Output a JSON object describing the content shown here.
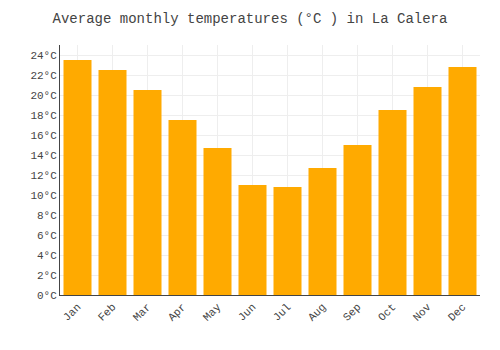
{
  "chart_data": {
    "type": "bar",
    "title": "Average monthly temperatures (°C ) in La Calera",
    "categories": [
      "Jan",
      "Feb",
      "Mar",
      "Apr",
      "May",
      "Jun",
      "Jul",
      "Aug",
      "Sep",
      "Oct",
      "Nov",
      "Dec"
    ],
    "values": [
      23.5,
      22.5,
      20.5,
      17.5,
      14.7,
      11.0,
      10.8,
      12.7,
      15.0,
      18.5,
      20.8,
      22.8
    ],
    "color": "#FFAA00",
    "ylim": [
      0,
      25
    ],
    "yticks": [
      {
        "value": 0,
        "label": "0°C"
      },
      {
        "value": 2,
        "label": "2°C"
      },
      {
        "value": 4,
        "label": "4°C"
      },
      {
        "value": 6,
        "label": "6°C"
      },
      {
        "value": 8,
        "label": "8°C"
      },
      {
        "value": 10,
        "label": "10°C"
      },
      {
        "value": 12,
        "label": "12°C"
      },
      {
        "value": 14,
        "label": "14°C"
      },
      {
        "value": 16,
        "label": "16°C"
      },
      {
        "value": 18,
        "label": "18°C"
      },
      {
        "value": 20,
        "label": "20°C"
      },
      {
        "value": 22,
        "label": "22°C"
      },
      {
        "value": 24,
        "label": "24°C"
      }
    ],
    "grid": true
  }
}
